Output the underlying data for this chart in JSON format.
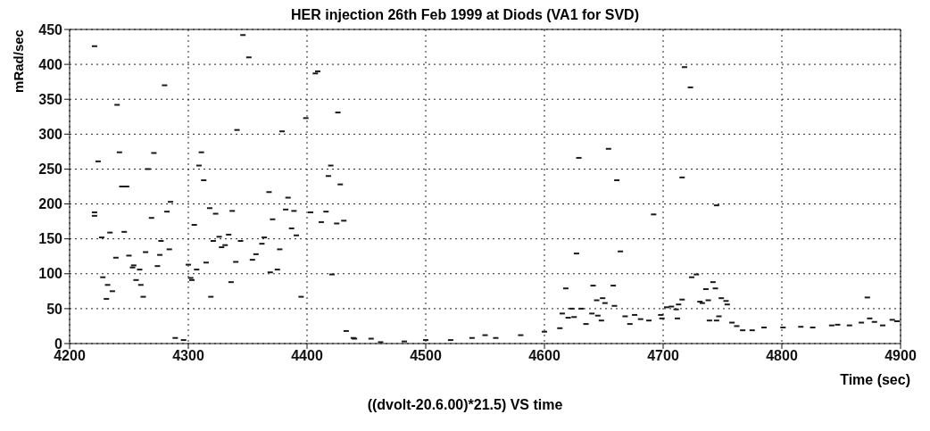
{
  "chart_data": {
    "type": "scatter",
    "title": "HER injection 26th Feb 1999 at Diods (VA1 for SVD)",
    "xlabel": "Time (sec)",
    "ylabel": "mRad/sec",
    "annotations": [
      "((dvolt-20.6.00)*21.5) VS time"
    ],
    "xlim": [
      4200,
      4900
    ],
    "xticks": [
      4200,
      4300,
      4400,
      4500,
      4600,
      4700,
      4800,
      4900
    ],
    "ylim": [
      0,
      450
    ],
    "yticks": [
      0,
      50,
      100,
      150,
      200,
      250,
      300,
      350,
      400,
      450
    ],
    "grid": true,
    "marker": "square",
    "legend": false,
    "series": [
      {
        "color": "#1a1a1a",
        "x": [
          4221,
          4346,
          4351,
          4280,
          4240,
          4407,
          4409,
          4426,
          4399,
          4341,
          4379,
          4242,
          4271,
          4311,
          4224,
          4309,
          4420,
          4418,
          4313,
          4428,
          4244,
          4248,
          4368,
          4384,
          4266,
          4285,
          4221,
          4221,
          4282,
          4269,
          4318,
          4323,
          4337,
          4382,
          4389,
          4403,
          4416,
          4412,
          4425,
          4431,
          4227,
          4234,
          4246,
          4277,
          4284,
          4305,
          4321,
          4326,
          4334,
          4331,
          4328,
          4344,
          4364,
          4362,
          4387,
          4391,
          4371,
          4377,
          4357,
          4354,
          4340,
          4315,
          4276,
          4264,
          4239,
          4250,
          4253,
          4254,
          4259,
          4274,
          4300,
          4307,
          4302,
          4303,
          4228,
          4232,
          4236,
          4231,
          4256,
          4260,
          4262,
          4319,
          4336,
          4369,
          4375,
          4395,
          4433,
          4289,
          4296,
          4440,
          4454,
          4421,
          4439,
          4462,
          4482,
          4500,
          4521,
          4539,
          4550,
          4559,
          4580,
          4600,
          4613,
          4629,
          4654,
          4661,
          4692,
          4627,
          4664,
          4618,
          4641,
          4658,
          4644,
          4649,
          4651,
          4659,
          4623,
          4631,
          4615,
          4620,
          4625,
          4635,
          4640,
          4645,
          4648,
          4668,
          4672,
          4676,
          4681,
          4688,
          4698,
          4699,
          4703,
          4707,
          4711,
          4713,
          4716,
          4712,
          4718,
          4723,
          4716,
          4745,
          4724,
          4728,
          4736,
          4744,
          4742,
          4731,
          4733,
          4738,
          4739,
          4745,
          4747,
          4749,
          4753,
          4754,
          4758,
          4762,
          4767,
          4775,
          4785,
          4801,
          4816,
          4826,
          4842,
          4847,
          4857,
          4867,
          4872,
          4874,
          4878,
          4885,
          4893,
          4897
        ],
        "values": [
          426,
          442,
          410,
          370,
          342,
          387,
          390,
          331,
          323,
          306,
          304,
          274,
          273,
          274,
          261,
          255,
          255,
          240,
          234,
          228,
          225,
          225,
          217,
          209,
          250,
          203,
          188,
          183,
          189,
          180,
          194,
          186,
          190,
          192,
          190,
          188,
          189,
          174,
          172,
          176,
          152,
          159,
          160,
          147,
          135,
          170,
          147,
          153,
          156,
          141,
          138,
          147,
          152,
          143,
          165,
          155,
          178,
          135,
          128,
          120,
          117,
          116,
          127,
          131,
          123,
          126,
          109,
          112,
          106,
          111,
          113,
          106,
          94,
          91,
          95,
          84,
          75,
          64,
          91,
          84,
          67,
          67,
          88,
          102,
          106,
          67,
          18,
          8,
          5,
          7,
          7,
          99,
          8,
          2,
          3,
          5,
          5,
          8,
          12,
          8,
          12,
          17,
          22,
          266,
          279,
          234,
          185,
          129,
          132,
          79,
          83,
          83,
          62,
          65,
          58,
          54,
          50,
          50,
          43,
          37,
          38,
          28,
          43,
          40,
          33,
          39,
          28,
          41,
          35,
          33,
          41,
          36,
          52,
          53,
          49,
          56,
          63,
          36,
          396,
          367,
          238,
          198,
          95,
          99,
          78,
          79,
          88,
          60,
          58,
          62,
          33,
          33,
          39,
          65,
          61,
          56,
          30,
          25,
          19,
          19,
          23,
          23,
          24,
          23,
          26,
          27,
          26,
          30,
          66,
          36,
          31,
          26,
          34,
          32
        ]
      }
    ]
  }
}
